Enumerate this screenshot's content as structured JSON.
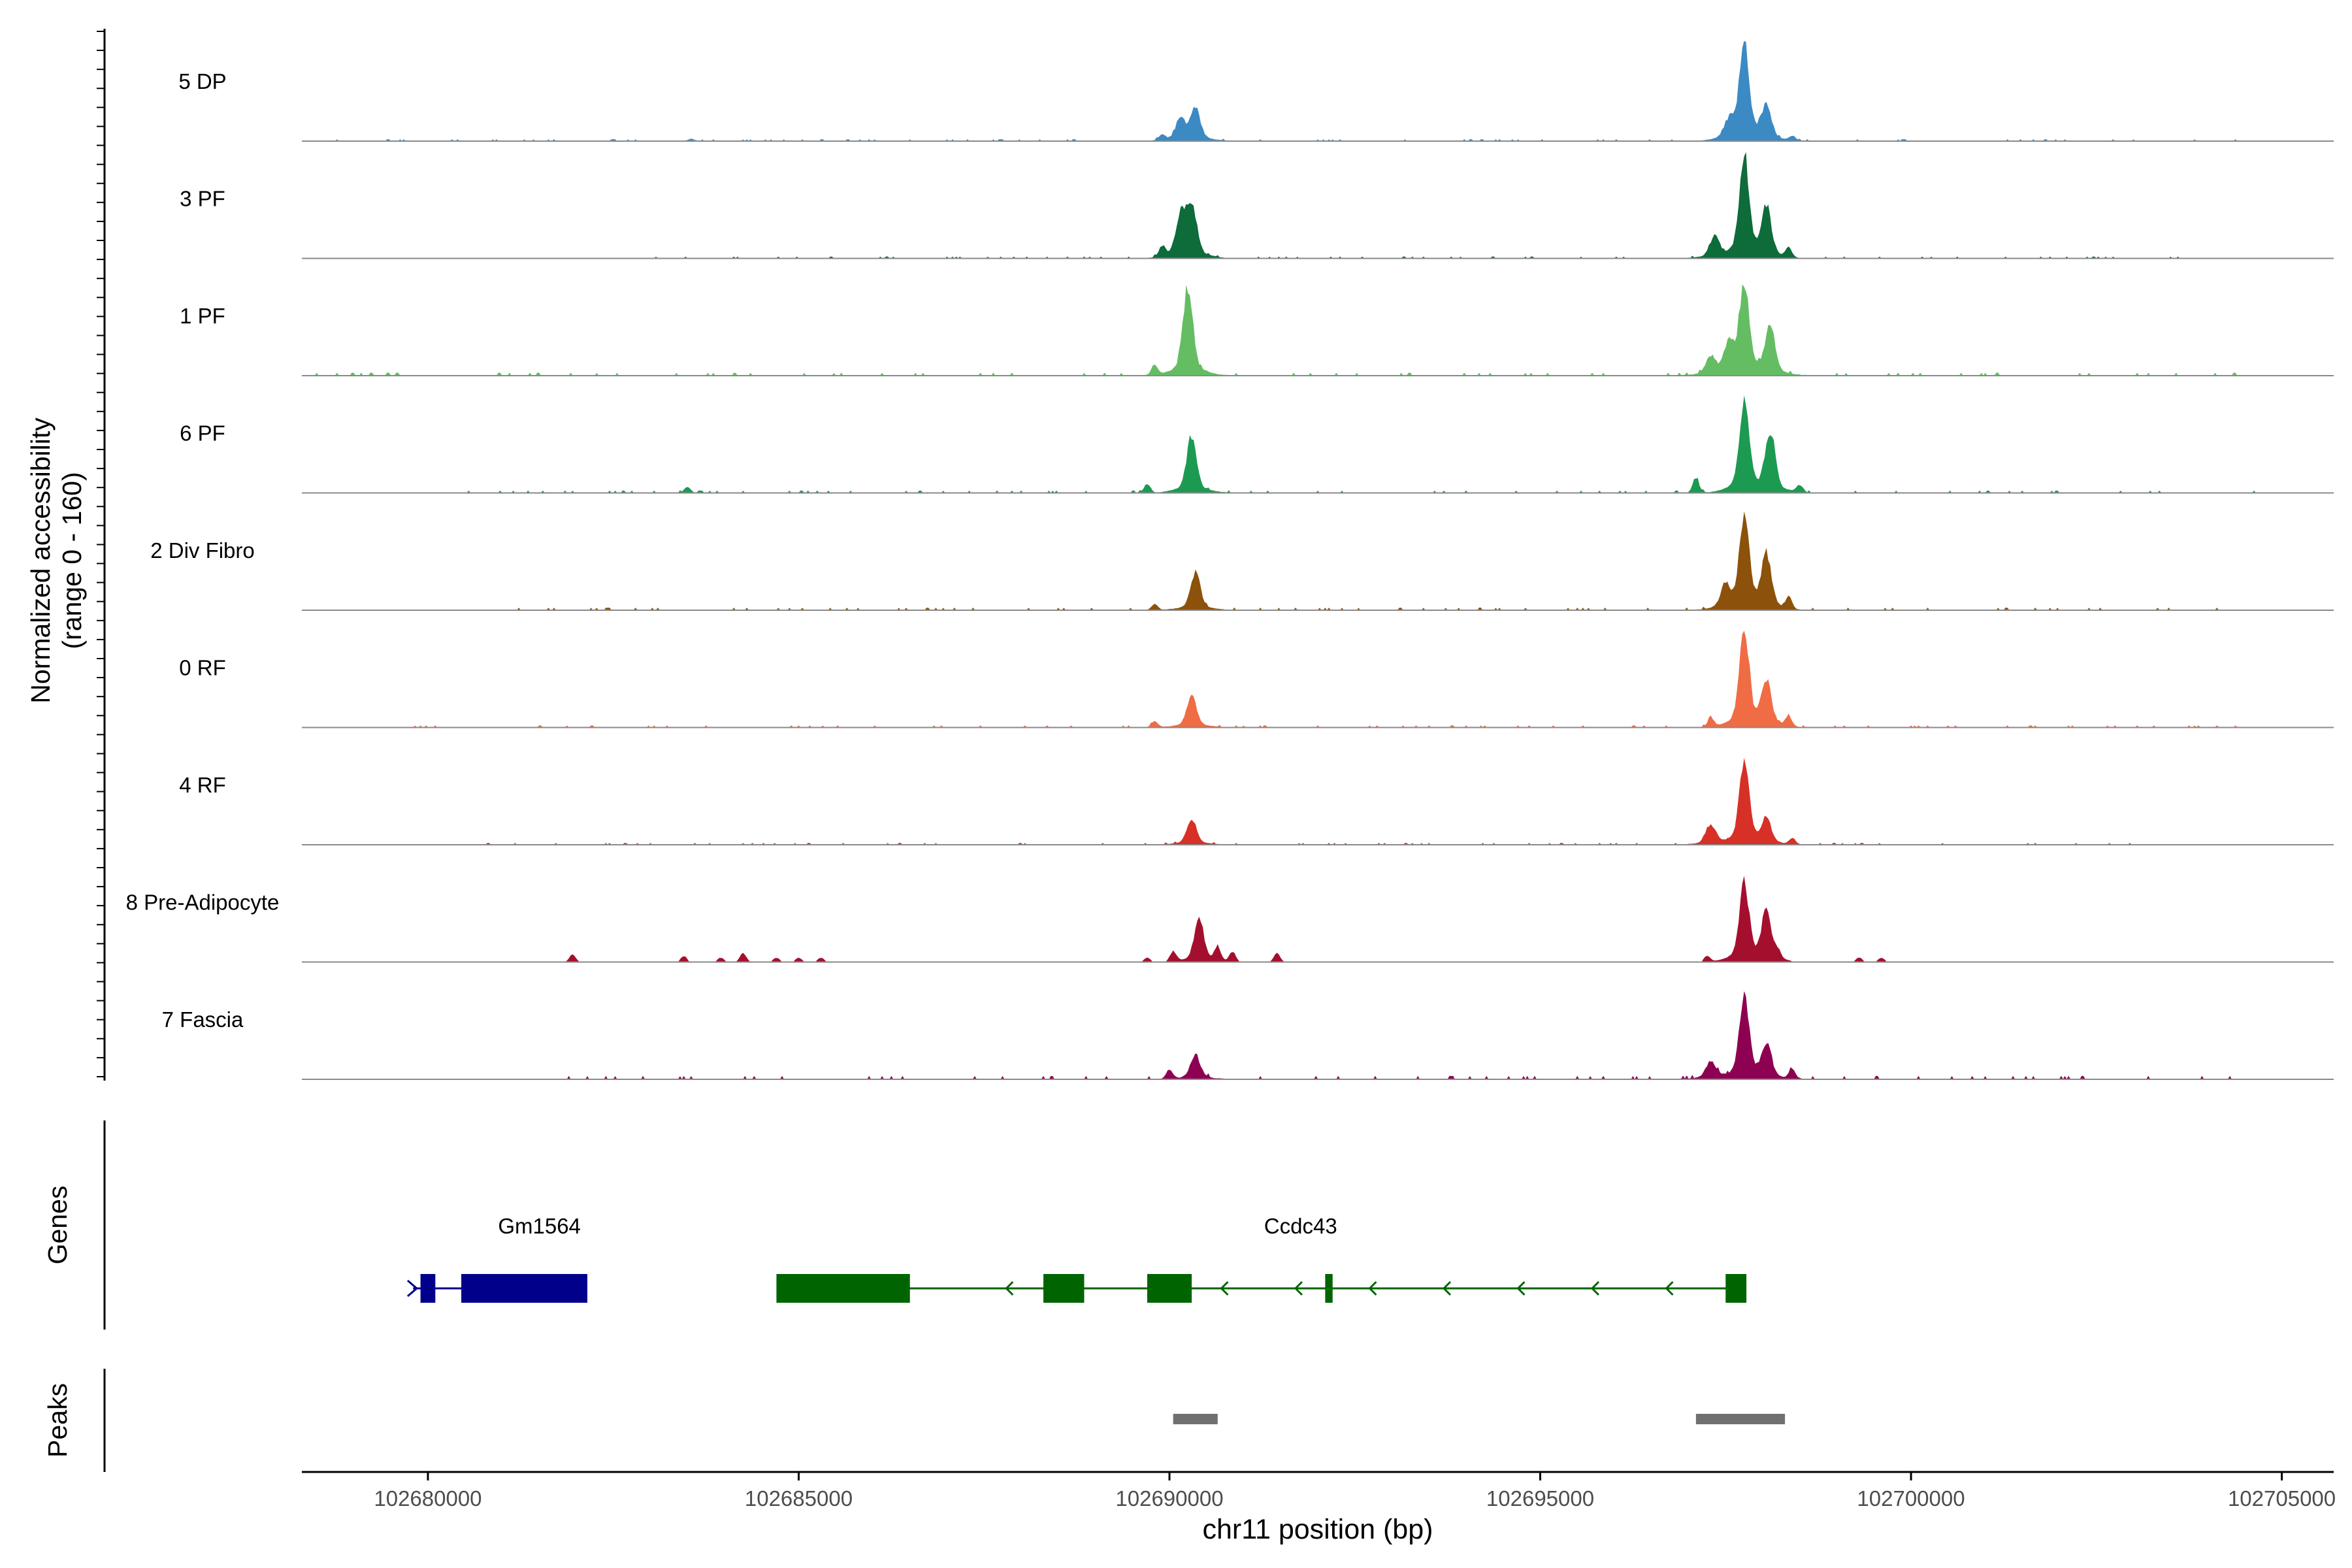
{
  "chart_data": {
    "type": "area",
    "title": "",
    "ylabel_line1": "Normalized accessibility",
    "ylabel_line2": "(range 0 - 160)",
    "y_range": [
      0,
      160
    ],
    "xlabel": "chr11 position (bp)",
    "x_range": [
      102678300,
      102705700
    ],
    "x_ticks": [
      {
        "value": 102680000,
        "label": "102680000"
      },
      {
        "value": 102685000,
        "label": "102685000"
      },
      {
        "value": 102690000,
        "label": "102690000"
      },
      {
        "value": 102695000,
        "label": "102695000"
      },
      {
        "value": 102700000,
        "label": "102700000"
      },
      {
        "value": 102705000,
        "label": "102705000"
      }
    ],
    "series": [
      {
        "name": "5 DP",
        "color": "#3B8AC4",
        "noise": 0.022,
        "noise_start": 102678300,
        "noise_end": 102704700,
        "peaks": [
          [
            102683550,
            3
          ],
          [
            102689900,
            8
          ],
          [
            102690150,
            26
          ],
          [
            102690350,
            40
          ],
          [
            102697550,
            22
          ],
          [
            102697750,
            120
          ],
          [
            102698050,
            42
          ],
          [
            102698400,
            6
          ]
        ]
      },
      {
        "name": "3 PF",
        "color": "#0E6B3A",
        "noise": 0.022,
        "noise_start": 102683000,
        "noise_end": 102703600,
        "peaks": [
          [
            102689900,
            14
          ],
          [
            102690150,
            50
          ],
          [
            102690300,
            64
          ],
          [
            102697350,
            25
          ],
          [
            102697750,
            125
          ],
          [
            102698050,
            62
          ],
          [
            102698350,
            12
          ]
        ]
      },
      {
        "name": "1 PF",
        "color": "#64BD63",
        "noise": 0.035,
        "noise_start": 102678300,
        "noise_end": 102704600,
        "peaks": [
          [
            102689800,
            14
          ],
          [
            102690250,
            110
          ],
          [
            102697300,
            22
          ],
          [
            102697550,
            35
          ],
          [
            102697750,
            112
          ],
          [
            102698100,
            60
          ]
        ]
      },
      {
        "name": "6 PF",
        "color": "#1C9A52",
        "noise": 0.028,
        "noise_start": 102680500,
        "noise_end": 102704800,
        "peaks": [
          [
            102683500,
            8
          ],
          [
            102689700,
            12
          ],
          [
            102690300,
            70
          ],
          [
            102697100,
            20
          ],
          [
            102697750,
            112
          ],
          [
            102698100,
            74
          ],
          [
            102698500,
            10
          ]
        ]
      },
      {
        "name": "2 Div Fibro",
        "color": "#8C510A",
        "noise": 0.03,
        "noise_start": 102680800,
        "noise_end": 102704200,
        "peaks": [
          [
            102689800,
            8
          ],
          [
            102690350,
            46
          ],
          [
            102697500,
            28
          ],
          [
            102697750,
            114
          ],
          [
            102698050,
            66
          ],
          [
            102698350,
            16
          ]
        ]
      },
      {
        "name": "0 RF",
        "color": "#F06C45",
        "noise": 0.025,
        "noise_start": 102679700,
        "noise_end": 102704900,
        "peaks": [
          [
            102689800,
            8
          ],
          [
            102690300,
            38
          ],
          [
            102697300,
            12
          ],
          [
            102697750,
            118
          ],
          [
            102698050,
            56
          ],
          [
            102698350,
            14
          ]
        ]
      },
      {
        "name": "4 RF",
        "color": "#D73027",
        "noise": 0.022,
        "noise_start": 102680800,
        "noise_end": 102703600,
        "peaks": [
          [
            102690300,
            30
          ],
          [
            102697300,
            24
          ],
          [
            102697750,
            100
          ],
          [
            102698050,
            30
          ],
          [
            102698400,
            8
          ]
        ]
      },
      {
        "name": "8 Pre-Adipocyte",
        "color": "#A50F2E",
        "noise": 0,
        "noise_start": 102681900,
        "noise_end": 102699600,
        "peaks": [
          [
            102681950,
            10
          ],
          [
            102683450,
            8
          ],
          [
            102683950,
            6
          ],
          [
            102684250,
            12
          ],
          [
            102684700,
            6
          ],
          [
            102685000,
            6
          ],
          [
            102685300,
            6
          ],
          [
            102689700,
            6
          ],
          [
            102690050,
            14
          ],
          [
            102690400,
            52
          ],
          [
            102690650,
            20
          ],
          [
            102690850,
            14
          ],
          [
            102691450,
            12
          ],
          [
            102697250,
            8
          ],
          [
            102697750,
            95
          ],
          [
            102698050,
            60
          ],
          [
            102698200,
            12
          ],
          [
            102699300,
            6
          ],
          [
            102699600,
            6
          ]
        ]
      },
      {
        "name": "7 Fascia",
        "color": "#8E0152",
        "noise": 0.04,
        "noise_start": 102681800,
        "noise_end": 102704400,
        "peaks": [
          [
            102690000,
            12
          ],
          [
            102690350,
            30
          ],
          [
            102697300,
            22
          ],
          [
            102697750,
            100
          ],
          [
            102698050,
            42
          ],
          [
            102698400,
            12
          ]
        ]
      }
    ],
    "genes_label": "Genes",
    "genes": [
      {
        "name": "Gm1564",
        "color": "#00008B",
        "start": 102679800,
        "end": 102682150,
        "exons": [
          [
            102679900,
            102680100
          ],
          [
            102680450,
            102682150
          ]
        ],
        "arrows": [
          102679850
        ]
      },
      {
        "name": "Ccdc43",
        "color": "#006400",
        "start": 102684700,
        "end": 102697780,
        "exons": [
          [
            102684700,
            102686500
          ],
          [
            102688300,
            102688850
          ],
          [
            102689700,
            102690300
          ],
          [
            102692100,
            102692200
          ],
          [
            102697500,
            102697780
          ]
        ],
        "arrows": [
          102687800,
          102690700,
          102691700,
          102692700,
          102693700,
          102694700,
          102695700,
          102696700
        ]
      }
    ],
    "peaks_label": "Peaks",
    "peak_regions": [
      [
        102690050,
        102690650
      ],
      [
        102697100,
        102698300
      ]
    ]
  }
}
